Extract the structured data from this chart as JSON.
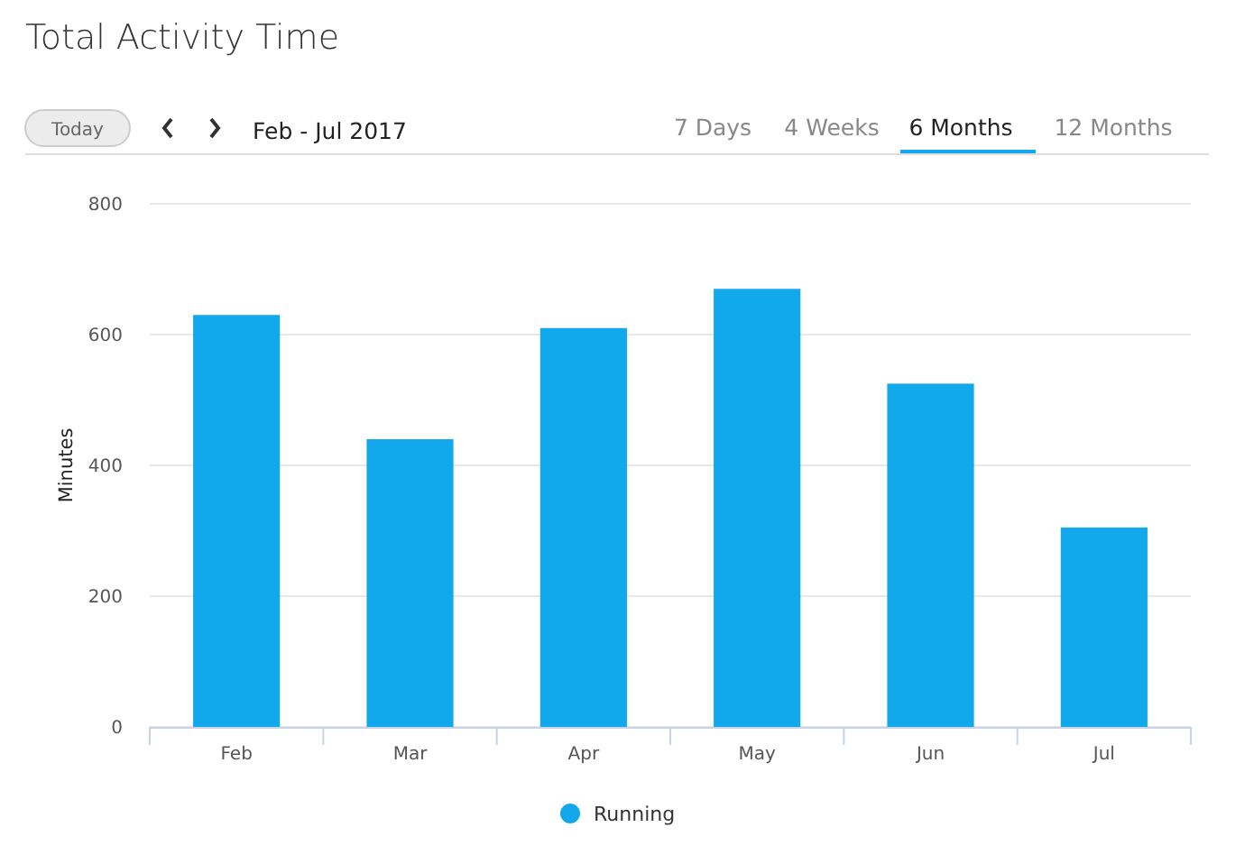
{
  "chart_data": {
    "type": "bar",
    "title": "Total Activity Time",
    "subtitle": "Feb - Jul 2017",
    "ylabel": "Minutes",
    "annotations": [
      "Today",
      "7 Days",
      "4 Weeks",
      "6 Months",
      "12 Months"
    ],
    "categories": [
      "Feb",
      "Mar",
      "Apr",
      "May",
      "Jun",
      "Jul"
    ],
    "series": [
      {
        "name": "Running",
        "color": "#12a8ec",
        "values": [
          630,
          440,
          610,
          670,
          525,
          305
        ]
      }
    ],
    "ylim": [
      0,
      800
    ],
    "yticks": [
      0,
      200,
      400,
      600,
      800
    ],
    "grid": "y",
    "legend": "bottom"
  }
}
